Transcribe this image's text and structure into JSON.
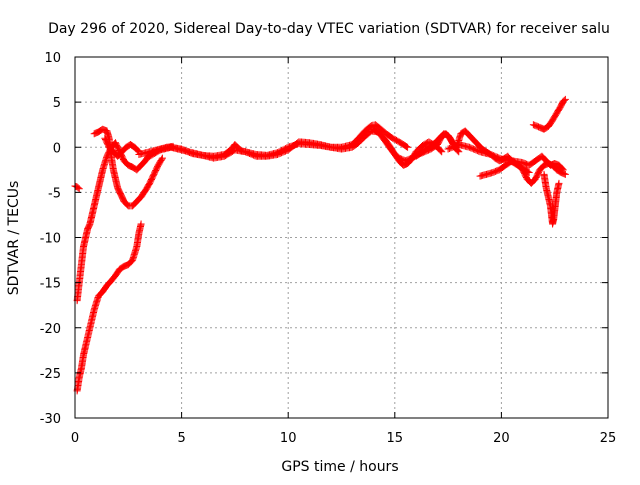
{
  "chart_data": {
    "type": "scatter",
    "title": "Day 296 of 2020, Sidereal Day-to-day VTEC variation (SDTVAR) for receiver salu",
    "xlabel": "GPS time / hours",
    "ylabel": "SDTVAR / TECUs",
    "xlim": [
      0,
      25
    ],
    "ylim": [
      -30,
      10
    ],
    "xticks": [
      0,
      5,
      10,
      15,
      20,
      25
    ],
    "yticks": [
      -30,
      -25,
      -20,
      -15,
      -10,
      -5,
      0,
      5,
      10
    ],
    "grid": true,
    "marker": "+",
    "series": [
      {
        "name": "SDTVAR",
        "color": "#ff0000",
        "tracks": [
          {
            "x": [
              0.0,
              0.1,
              0.2
            ],
            "y": [
              -4.3,
              -4.4,
              -4.6
            ]
          },
          {
            "x": [
              0.1,
              0.2,
              0.3,
              0.4,
              0.5,
              0.7,
              0.9,
              1.1,
              1.3,
              1.5,
              1.7,
              1.9,
              2.1,
              2.3,
              2.5,
              2.7,
              2.9,
              3.0,
              3.1
            ],
            "y": [
              -27.0,
              -25.5,
              -24.5,
              -23.0,
              -22.0,
              -20.0,
              -18.0,
              -16.5,
              -16.0,
              -15.3,
              -14.8,
              -14.2,
              -13.5,
              -13.2,
              -13.0,
              -12.5,
              -11.0,
              -9.5,
              -8.5
            ]
          },
          {
            "x": [
              0.1,
              0.2,
              0.3,
              0.4,
              0.5,
              0.6,
              0.7,
              0.8,
              0.9,
              1.0,
              1.1,
              1.2,
              1.3,
              1.5,
              1.7,
              1.9,
              2.1,
              2.3,
              2.5,
              2.7,
              2.9,
              3.1,
              3.3,
              3.5,
              3.7,
              4.0,
              4.3,
              4.6
            ],
            "y": [
              -17.0,
              -15.0,
              -13.0,
              -11.0,
              -10.0,
              -9.0,
              -8.5,
              -7.5,
              -6.5,
              -5.5,
              -4.5,
              -3.5,
              -2.5,
              -1.0,
              0.0,
              0.5,
              -0.5,
              -1.5,
              -2.0,
              -2.2,
              -2.5,
              -2.0,
              -1.5,
              -0.8,
              -0.5,
              -0.2,
              0.0,
              0.1
            ]
          },
          {
            "x": [
              0.9,
              1.1,
              1.3,
              1.5,
              1.6,
              1.7,
              1.8,
              1.9,
              2.0,
              2.1,
              2.2,
              2.3,
              2.5,
              2.7,
              2.9,
              3.1,
              3.3,
              3.5,
              3.7,
              3.9,
              4.1
            ],
            "y": [
              1.5,
              1.7,
              2.0,
              1.8,
              1.0,
              -1.0,
              -2.5,
              -3.5,
              -4.5,
              -5.0,
              -5.5,
              -6.0,
              -6.5,
              -6.5,
              -6.0,
              -5.5,
              -4.8,
              -4.0,
              -3.0,
              -2.0,
              -1.2
            ]
          },
          {
            "x": [
              1.4,
              1.6,
              1.8,
              2.0,
              2.2,
              2.4,
              2.6,
              2.8,
              3.0
            ],
            "y": [
              1.0,
              0.0,
              -0.5,
              -1.0,
              -0.5,
              0.0,
              0.3,
              0.0,
              -0.5
            ]
          },
          {
            "x": [
              3.0,
              3.5,
              4.0,
              4.5,
              5.0,
              5.5,
              6.0,
              6.5,
              7.0,
              7.3,
              7.5,
              7.8,
              8.0,
              8.5,
              9.0,
              9.5,
              10.0,
              10.5,
              11.0,
              11.5,
              12.0,
              12.5,
              13.0,
              13.3,
              13.6,
              13.9,
              14.1,
              14.3,
              14.6,
              14.9,
              15.2,
              15.4,
              15.6
            ],
            "y": [
              -0.8,
              -0.5,
              -0.2,
              0.0,
              -0.3,
              -0.6,
              -0.9,
              -1.0,
              -0.8,
              -0.3,
              0.3,
              -0.4,
              -0.5,
              -0.8,
              -0.9,
              -0.6,
              0.0,
              0.4,
              0.3,
              0.2,
              0.0,
              0.0,
              0.3,
              1.0,
              1.8,
              2.4,
              2.5,
              2.1,
              1.5,
              1.0,
              0.6,
              0.3,
              0.0
            ]
          },
          {
            "x": [
              3.5,
              4.0,
              4.5,
              5.0,
              5.5,
              6.0,
              6.5,
              7.0,
              7.5,
              8.0,
              8.5,
              9.0,
              9.5,
              10.0,
              10.5,
              11.0,
              11.5,
              12.0,
              12.5,
              13.0,
              13.3,
              13.6,
              13.9,
              14.2,
              14.5,
              14.8,
              15.0,
              15.2,
              15.4,
              15.6,
              15.8,
              16.0,
              16.3,
              16.6,
              17.0,
              17.2
            ],
            "y": [
              -1.0,
              -0.3,
              0.0,
              -0.2,
              -0.7,
              -0.9,
              -1.2,
              -1.0,
              -0.3,
              -0.5,
              -1.0,
              -1.0,
              -0.8,
              -0.3,
              0.6,
              0.5,
              0.3,
              0.0,
              -0.2,
              0.0,
              0.5,
              1.2,
              1.8,
              1.7,
              1.0,
              0.0,
              -0.8,
              -1.5,
              -2.0,
              -1.8,
              -1.3,
              -0.5,
              0.2,
              0.6,
              0.0,
              -0.5
            ]
          },
          {
            "x": [
              14.0,
              14.3,
              14.6,
              14.9,
              15.2,
              15.5,
              15.8,
              16.1,
              16.4,
              16.7,
              17.0,
              17.2,
              17.4,
              17.6,
              17.8,
              18.0
            ],
            "y": [
              2.0,
              1.5,
              0.5,
              -0.5,
              -1.2,
              -1.5,
              -1.2,
              -0.8,
              -0.5,
              -0.2,
              0.3,
              1.2,
              1.5,
              1.0,
              0.0,
              -0.5
            ]
          },
          {
            "x": [
              16.0,
              16.3,
              16.6,
              16.9,
              17.1,
              17.3,
              17.5,
              17.7,
              17.9,
              18.1,
              18.3,
              18.5,
              18.7,
              18.9,
              19.1,
              19.3,
              19.5,
              19.7,
              19.9,
              20.1,
              20.3,
              20.5,
              20.7,
              20.9,
              21.1,
              21.3
            ],
            "y": [
              -1.0,
              -0.5,
              0.0,
              0.5,
              1.0,
              1.5,
              1.3,
              0.5,
              0.0,
              1.5,
              1.8,
              1.3,
              0.8,
              0.3,
              -0.2,
              -0.5,
              -0.8,
              -1.2,
              -1.5,
              -1.3,
              -1.0,
              -1.6,
              -1.9,
              -2.2,
              -2.5,
              -2.8
            ]
          },
          {
            "x": [
              19.0,
              19.3,
              19.6,
              19.9,
              20.2,
              20.5,
              20.8,
              21.0,
              21.2,
              21.4,
              21.6,
              21.8,
              22.0,
              22.2,
              22.4,
              22.6,
              22.8,
              23.0
            ],
            "y": [
              -3.2,
              -3.0,
              -2.8,
              -2.5,
              -2.0,
              -1.5,
              -2.0,
              -2.5,
              -3.5,
              -4.0,
              -3.5,
              -2.5,
              -2.0,
              -1.8,
              -2.0,
              -2.5,
              -2.8,
              -3.0
            ]
          },
          {
            "x": [
              17.5,
              18.0,
              18.5,
              19.0,
              19.5,
              20.0,
              20.5,
              21.0,
              21.3,
              21.6,
              21.9,
              22.1,
              22.3,
              22.5,
              22.7,
              22.9
            ],
            "y": [
              -0.2,
              0.3,
              0.0,
              -0.5,
              -0.8,
              -1.3,
              -1.5,
              -1.7,
              -2.0,
              -1.5,
              -1.0,
              -1.5,
              -2.0,
              -1.8,
              -2.0,
              -2.5
            ]
          },
          {
            "x": [
              21.5,
              21.8,
              22.0,
              22.2,
              22.4,
              22.6,
              22.8,
              22.9,
              23.0
            ],
            "y": [
              2.5,
              2.2,
              2.0,
              2.3,
              3.0,
              3.8,
              4.6,
              5.1,
              5.3
            ]
          },
          {
            "x": [
              22.0,
              22.1,
              22.2,
              22.3,
              22.35,
              22.4,
              22.45,
              22.5,
              22.55,
              22.6,
              22.7
            ],
            "y": [
              -3.0,
              -4.5,
              -5.5,
              -6.5,
              -7.5,
              -8.5,
              -8.0,
              -7.0,
              -6.0,
              -5.0,
              -4.0
            ]
          }
        ]
      }
    ]
  }
}
